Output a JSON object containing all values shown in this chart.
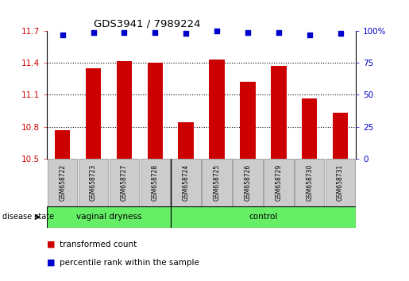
{
  "title": "GDS3941 / 7989224",
  "samples": [
    "GSM658722",
    "GSM658723",
    "GSM658727",
    "GSM658728",
    "GSM658724",
    "GSM658725",
    "GSM658726",
    "GSM658729",
    "GSM658730",
    "GSM658731"
  ],
  "bar_values": [
    10.77,
    11.35,
    11.42,
    11.4,
    10.84,
    11.43,
    11.22,
    11.37,
    11.07,
    10.93
  ],
  "percentile_values": [
    97,
    99,
    99,
    99,
    98,
    100,
    99,
    99,
    97,
    98
  ],
  "bar_color": "#cc0000",
  "percentile_color": "#0000cc",
  "ylim_left": [
    10.5,
    11.7
  ],
  "ylim_right": [
    0,
    100
  ],
  "yticks_left": [
    10.5,
    10.8,
    11.1,
    11.4,
    11.7
  ],
  "ytick_labels_left": [
    "10.5",
    "10.8",
    "11.1",
    "11.4",
    "11.7"
  ],
  "yticks_right": [
    0,
    25,
    50,
    75,
    100
  ],
  "ytick_labels_right": [
    "0",
    "25",
    "50",
    "75",
    "100%"
  ],
  "group1_label": "vaginal dryness",
  "group2_label": "control",
  "group1_indices": [
    0,
    1,
    2,
    3
  ],
  "group2_indices": [
    4,
    5,
    6,
    7,
    8,
    9
  ],
  "group_bar_color": "#66ee66",
  "sample_box_color": "#cccccc",
  "disease_state_label": "disease state",
  "legend_label_bar": "transformed count",
  "legend_label_percentile": "percentile rank within the sample",
  "tick_label_color_left": "#cc0000",
  "tick_label_color_right": "#0000cc"
}
